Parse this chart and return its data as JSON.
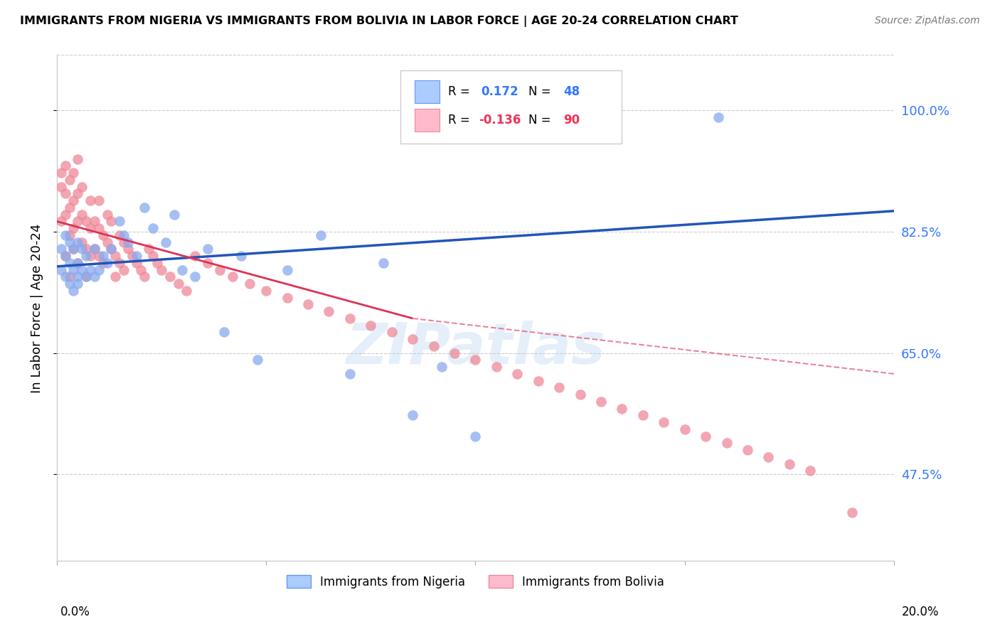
{
  "title": "IMMIGRANTS FROM NIGERIA VS IMMIGRANTS FROM BOLIVIA IN LABOR FORCE | AGE 20-24 CORRELATION CHART",
  "source": "Source: ZipAtlas.com",
  "ylabel": "In Labor Force | Age 20-24",
  "ytick_labels": [
    "100.0%",
    "82.5%",
    "65.0%",
    "47.5%"
  ],
  "ytick_values": [
    1.0,
    0.825,
    0.65,
    0.475
  ],
  "xmin": 0.0,
  "xmax": 0.2,
  "ymin": 0.35,
  "ymax": 1.08,
  "nigeria_color": "#88aaee",
  "bolivia_color": "#ee8899",
  "nigeria_line_color": "#2255bb",
  "bolivia_line_color": "#dd3355",
  "bolivia_line_solid_end": 0.085,
  "watermark": "ZIPatlas",
  "legend_R_nigeria": "0.172",
  "legend_N_nigeria": "48",
  "legend_R_bolivia": "-0.136",
  "legend_N_bolivia": "90",
  "nigeria_x": [
    0.001,
    0.001,
    0.002,
    0.002,
    0.002,
    0.003,
    0.003,
    0.003,
    0.004,
    0.004,
    0.004,
    0.005,
    0.005,
    0.005,
    0.005,
    0.006,
    0.006,
    0.007,
    0.007,
    0.008,
    0.009,
    0.009,
    0.01,
    0.011,
    0.012,
    0.013,
    0.015,
    0.016,
    0.017,
    0.019,
    0.021,
    0.023,
    0.026,
    0.028,
    0.03,
    0.033,
    0.036,
    0.04,
    0.044,
    0.048,
    0.055,
    0.063,
    0.07,
    0.078,
    0.085,
    0.092,
    0.1,
    0.158
  ],
  "nigeria_y": [
    0.77,
    0.8,
    0.76,
    0.79,
    0.82,
    0.75,
    0.78,
    0.81,
    0.74,
    0.77,
    0.8,
    0.75,
    0.78,
    0.81,
    0.76,
    0.77,
    0.8,
    0.76,
    0.79,
    0.77,
    0.76,
    0.8,
    0.77,
    0.79,
    0.78,
    0.8,
    0.84,
    0.82,
    0.81,
    0.79,
    0.86,
    0.83,
    0.81,
    0.85,
    0.77,
    0.76,
    0.8,
    0.68,
    0.79,
    0.64,
    0.77,
    0.82,
    0.62,
    0.78,
    0.56,
    0.63,
    0.53,
    0.99
  ],
  "bolivia_x": [
    0.001,
    0.001,
    0.001,
    0.002,
    0.002,
    0.002,
    0.002,
    0.003,
    0.003,
    0.003,
    0.003,
    0.004,
    0.004,
    0.004,
    0.004,
    0.005,
    0.005,
    0.005,
    0.005,
    0.006,
    0.006,
    0.006,
    0.007,
    0.007,
    0.007,
    0.008,
    0.008,
    0.008,
    0.009,
    0.009,
    0.01,
    0.01,
    0.01,
    0.011,
    0.011,
    0.012,
    0.012,
    0.013,
    0.013,
    0.014,
    0.014,
    0.015,
    0.015,
    0.016,
    0.016,
    0.017,
    0.018,
    0.019,
    0.02,
    0.021,
    0.022,
    0.023,
    0.024,
    0.025,
    0.027,
    0.029,
    0.031,
    0.033,
    0.036,
    0.039,
    0.042,
    0.046,
    0.05,
    0.055,
    0.06,
    0.065,
    0.07,
    0.075,
    0.08,
    0.085,
    0.09,
    0.095,
    0.1,
    0.105,
    0.11,
    0.115,
    0.12,
    0.125,
    0.13,
    0.135,
    0.14,
    0.145,
    0.15,
    0.155,
    0.16,
    0.165,
    0.17,
    0.175,
    0.18,
    0.19
  ],
  "bolivia_y": [
    0.91,
    0.84,
    0.89,
    0.85,
    0.88,
    0.92,
    0.79,
    0.82,
    0.86,
    0.9,
    0.76,
    0.83,
    0.87,
    0.91,
    0.8,
    0.84,
    0.88,
    0.93,
    0.78,
    0.81,
    0.85,
    0.89,
    0.8,
    0.84,
    0.76,
    0.79,
    0.83,
    0.87,
    0.8,
    0.84,
    0.79,
    0.83,
    0.87,
    0.78,
    0.82,
    0.81,
    0.85,
    0.8,
    0.84,
    0.79,
    0.76,
    0.78,
    0.82,
    0.77,
    0.81,
    0.8,
    0.79,
    0.78,
    0.77,
    0.76,
    0.8,
    0.79,
    0.78,
    0.77,
    0.76,
    0.75,
    0.74,
    0.79,
    0.78,
    0.77,
    0.76,
    0.75,
    0.74,
    0.73,
    0.72,
    0.71,
    0.7,
    0.69,
    0.68,
    0.67,
    0.66,
    0.65,
    0.64,
    0.63,
    0.62,
    0.61,
    0.6,
    0.59,
    0.58,
    0.57,
    0.56,
    0.55,
    0.54,
    0.53,
    0.52,
    0.51,
    0.5,
    0.49,
    0.48,
    0.42
  ]
}
